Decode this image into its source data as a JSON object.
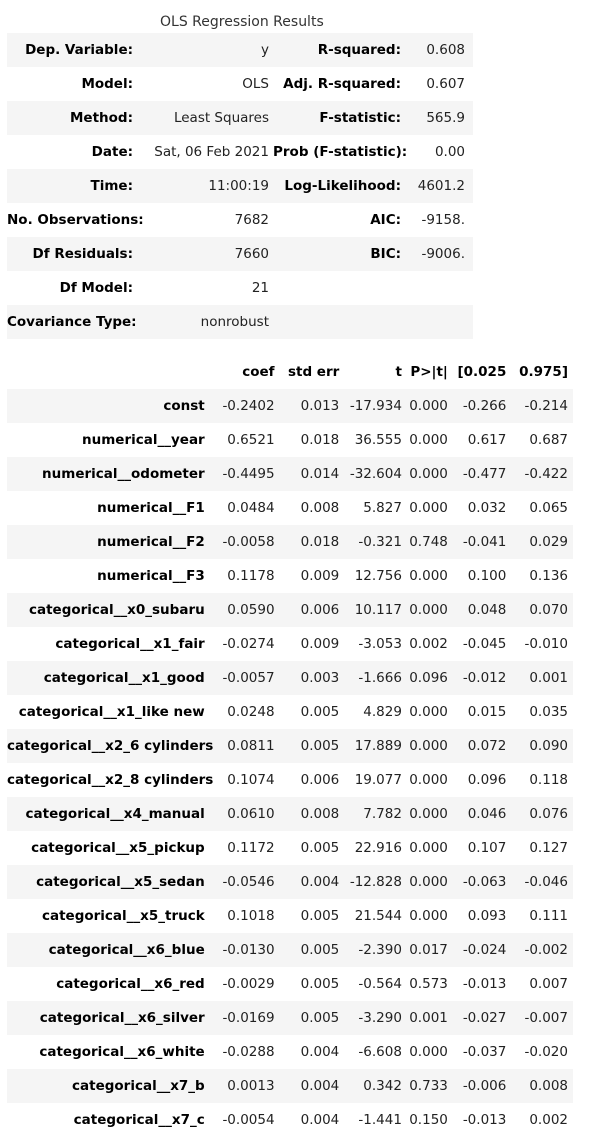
{
  "caption": "OLS Regression Results",
  "summary": [
    [
      "Dep. Variable:",
      "y",
      "R-squared:",
      "0.608"
    ],
    [
      "Model:",
      "OLS",
      "Adj. R-squared:",
      "0.607"
    ],
    [
      "Method:",
      "Least Squares",
      "F-statistic:",
      "565.9"
    ],
    [
      "Date:",
      "Sat, 06 Feb 2021",
      "Prob (F-statistic):",
      "0.00"
    ],
    [
      "Time:",
      "11:00:19",
      "Log-Likelihood:",
      "4601.2"
    ],
    [
      "No. Observations:",
      "7682",
      "AIC:",
      "-9158."
    ],
    [
      "Df Residuals:",
      "7660",
      "BIC:",
      "-9006."
    ],
    [
      "Df Model:",
      "21",
      "",
      ""
    ],
    [
      "Covariance Type:",
      "nonrobust",
      "",
      ""
    ]
  ],
  "coef_headers": [
    "",
    "coef",
    "std err",
    "t",
    "P>|t|",
    "[0.025",
    "0.975]"
  ],
  "coef_rows": [
    [
      "const",
      "-0.2402",
      "0.013",
      "-17.934",
      "0.000",
      "-0.266",
      "-0.214"
    ],
    [
      "numerical__year",
      "0.6521",
      "0.018",
      "36.555",
      "0.000",
      "0.617",
      "0.687"
    ],
    [
      "numerical__odometer",
      "-0.4495",
      "0.014",
      "-32.604",
      "0.000",
      "-0.477",
      "-0.422"
    ],
    [
      "numerical__F1",
      "0.0484",
      "0.008",
      "5.827",
      "0.000",
      "0.032",
      "0.065"
    ],
    [
      "numerical__F2",
      "-0.0058",
      "0.018",
      "-0.321",
      "0.748",
      "-0.041",
      "0.029"
    ],
    [
      "numerical__F3",
      "0.1178",
      "0.009",
      "12.756",
      "0.000",
      "0.100",
      "0.136"
    ],
    [
      "categorical__x0_subaru",
      "0.0590",
      "0.006",
      "10.117",
      "0.000",
      "0.048",
      "0.070"
    ],
    [
      "categorical__x1_fair",
      "-0.0274",
      "0.009",
      "-3.053",
      "0.002",
      "-0.045",
      "-0.010"
    ],
    [
      "categorical__x1_good",
      "-0.0057",
      "0.003",
      "-1.666",
      "0.096",
      "-0.012",
      "0.001"
    ],
    [
      "categorical__x1_like new",
      "0.0248",
      "0.005",
      "4.829",
      "0.000",
      "0.015",
      "0.035"
    ],
    [
      "categorical__x2_6 cylinders",
      "0.0811",
      "0.005",
      "17.889",
      "0.000",
      "0.072",
      "0.090"
    ],
    [
      "categorical__x2_8 cylinders",
      "0.1074",
      "0.006",
      "19.077",
      "0.000",
      "0.096",
      "0.118"
    ],
    [
      "categorical__x4_manual",
      "0.0610",
      "0.008",
      "7.782",
      "0.000",
      "0.046",
      "0.076"
    ],
    [
      "categorical__x5_pickup",
      "0.1172",
      "0.005",
      "22.916",
      "0.000",
      "0.107",
      "0.127"
    ],
    [
      "categorical__x5_sedan",
      "-0.0546",
      "0.004",
      "-12.828",
      "0.000",
      "-0.063",
      "-0.046"
    ],
    [
      "categorical__x5_truck",
      "0.1018",
      "0.005",
      "21.544",
      "0.000",
      "0.093",
      "0.111"
    ],
    [
      "categorical__x6_blue",
      "-0.0130",
      "0.005",
      "-2.390",
      "0.017",
      "-0.024",
      "-0.002"
    ],
    [
      "categorical__x6_red",
      "-0.0029",
      "0.005",
      "-0.564",
      "0.573",
      "-0.013",
      "0.007"
    ],
    [
      "categorical__x6_silver",
      "-0.0169",
      "0.005",
      "-3.290",
      "0.001",
      "-0.027",
      "-0.007"
    ],
    [
      "categorical__x6_white",
      "-0.0288",
      "0.004",
      "-6.608",
      "0.000",
      "-0.037",
      "-0.020"
    ],
    [
      "categorical__x7_b",
      "0.0013",
      "0.004",
      "0.342",
      "0.733",
      "-0.006",
      "0.008"
    ],
    [
      "categorical__x7_c",
      "-0.0054",
      "0.004",
      "-1.441",
      "0.150",
      "-0.013",
      "0.002"
    ]
  ]
}
